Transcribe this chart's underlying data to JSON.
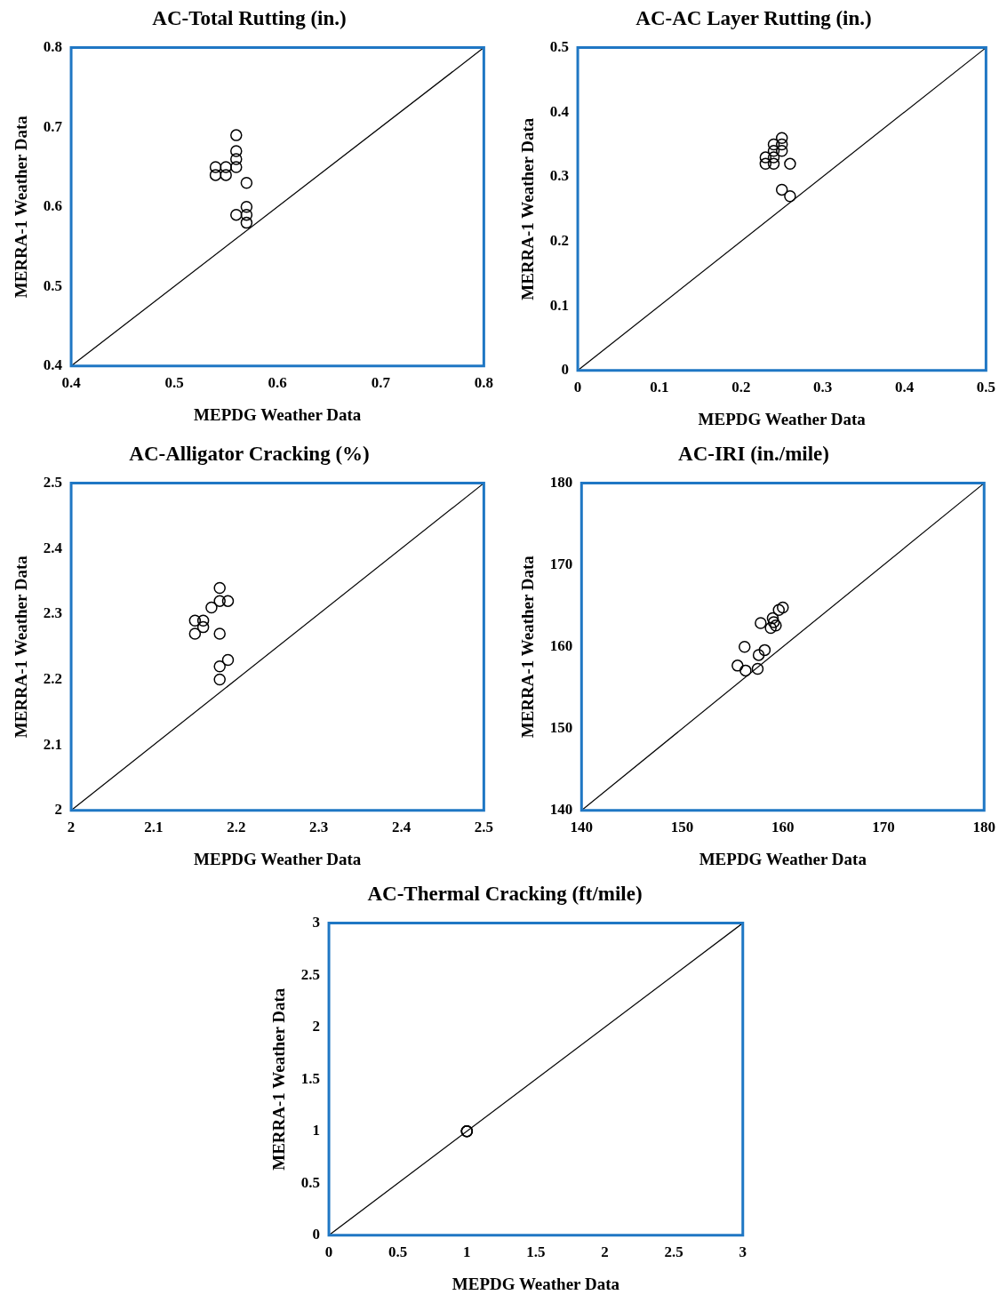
{
  "chart_data": [
    {
      "type": "scatter",
      "title": "AC-Total Rutting (in.)",
      "xlabel": "MEPDG Weather Data",
      "ylabel": "MERRA-1 Weather Data",
      "xlim": [
        0.4,
        0.8
      ],
      "ylim": [
        0.4,
        0.8
      ],
      "xticks": [
        0.4,
        0.5,
        0.6,
        0.7,
        0.8
      ],
      "yticks": [
        0.4,
        0.5,
        0.6,
        0.7,
        0.8
      ],
      "grid": false,
      "legend": false,
      "series": [
        {
          "marker": "circle",
          "color": "#000000",
          "x": [
            0.54,
            0.54,
            0.55,
            0.55,
            0.56,
            0.56,
            0.56,
            0.56,
            0.57,
            0.56,
            0.57,
            0.57,
            0.57
          ],
          "values": [
            0.65,
            0.64,
            0.65,
            0.64,
            0.69,
            0.67,
            0.66,
            0.65,
            0.63,
            0.59,
            0.6,
            0.59,
            0.58
          ]
        },
        {
          "type": "line",
          "color": "#000000",
          "x": [
            0.4,
            0.8
          ],
          "values": [
            0.4,
            0.8
          ]
        }
      ]
    },
    {
      "type": "scatter",
      "title": "AC-AC Layer Rutting (in.)",
      "xlabel": "MEPDG Weather Data",
      "ylabel": "MERRA-1 Weather Data",
      "xlim": [
        0,
        0.5
      ],
      "ylim": [
        0,
        0.5
      ],
      "xticks": [
        0,
        0.1,
        0.2,
        0.3,
        0.4,
        0.5
      ],
      "yticks": [
        0,
        0.1,
        0.2,
        0.3,
        0.4,
        0.5
      ],
      "grid": false,
      "legend": false,
      "series": [
        {
          "marker": "circle",
          "color": "#000000",
          "x": [
            0.23,
            0.23,
            0.24,
            0.24,
            0.24,
            0.24,
            0.25,
            0.25,
            0.25,
            0.26,
            0.25,
            0.26
          ],
          "values": [
            0.33,
            0.32,
            0.35,
            0.34,
            0.33,
            0.32,
            0.36,
            0.35,
            0.34,
            0.32,
            0.28,
            0.27
          ]
        },
        {
          "type": "line",
          "color": "#000000",
          "x": [
            0,
            0.5
          ],
          "values": [
            0,
            0.5
          ]
        }
      ]
    },
    {
      "type": "scatter",
      "title": "AC-Alligator Cracking (%)",
      "xlabel": "MEPDG Weather Data",
      "ylabel": "MERRA-1 Weather Data",
      "xlim": [
        2,
        2.5
      ],
      "ylim": [
        2,
        2.5
      ],
      "xticks": [
        2,
        2.1,
        2.2,
        2.3,
        2.4,
        2.5
      ],
      "yticks": [
        2,
        2.1,
        2.2,
        2.3,
        2.4,
        2.5
      ],
      "grid": false,
      "legend": false,
      "series": [
        {
          "marker": "circle",
          "color": "#000000",
          "x": [
            2.18,
            2.17,
            2.18,
            2.19,
            2.15,
            2.16,
            2.16,
            2.15,
            2.18,
            2.19,
            2.18,
            2.18
          ],
          "values": [
            2.34,
            2.31,
            2.32,
            2.32,
            2.29,
            2.29,
            2.28,
            2.27,
            2.27,
            2.23,
            2.22,
            2.2
          ]
        },
        {
          "type": "line",
          "color": "#000000",
          "x": [
            2,
            2.5
          ],
          "values": [
            2,
            2.5
          ]
        }
      ]
    },
    {
      "type": "scatter",
      "title": "AC-IRI (in./mile)",
      "xlabel": "MEPDG Weather Data",
      "ylabel": "MERRA-1 Weather Data",
      "xlim": [
        140,
        180
      ],
      "ylim": [
        140,
        180
      ],
      "xticks": [
        140,
        150,
        160,
        170,
        180
      ],
      "yticks": [
        140,
        150,
        160,
        170,
        180
      ],
      "grid": false,
      "legend": false,
      "series": [
        {
          "marker": "circle",
          "color": "#000000",
          "x": [
            155.5,
            156.3,
            156.2,
            157.5,
            157.6,
            158.2,
            157.8,
            158.8,
            159.1,
            159.3,
            159.6,
            160,
            159
          ],
          "values": [
            157.7,
            157.1,
            160,
            157.3,
            159,
            159.6,
            162.9,
            162.3,
            163,
            162.6,
            164.5,
            164.8,
            163.5
          ]
        },
        {
          "type": "line",
          "color": "#000000",
          "x": [
            140,
            180
          ],
          "values": [
            140,
            180
          ]
        }
      ]
    },
    {
      "type": "scatter",
      "title": "AC-Thermal Cracking (ft/mile)",
      "xlabel": "MEPDG Weather Data",
      "ylabel": "MERRA-1 Weather Data",
      "xlim": [
        0,
        3
      ],
      "ylim": [
        0,
        3
      ],
      "xticks": [
        0,
        0.5,
        1,
        1.5,
        2,
        2.5,
        3
      ],
      "yticks": [
        0,
        0.5,
        1,
        1.5,
        2,
        2.5,
        3
      ],
      "grid": false,
      "legend": false,
      "series": [
        {
          "marker": "circle",
          "color": "#000000",
          "x": [
            1,
            1,
            1
          ],
          "values": [
            1,
            1,
            1
          ]
        },
        {
          "type": "line",
          "color": "#000000",
          "x": [
            0,
            3
          ],
          "values": [
            0,
            3
          ]
        }
      ]
    }
  ]
}
